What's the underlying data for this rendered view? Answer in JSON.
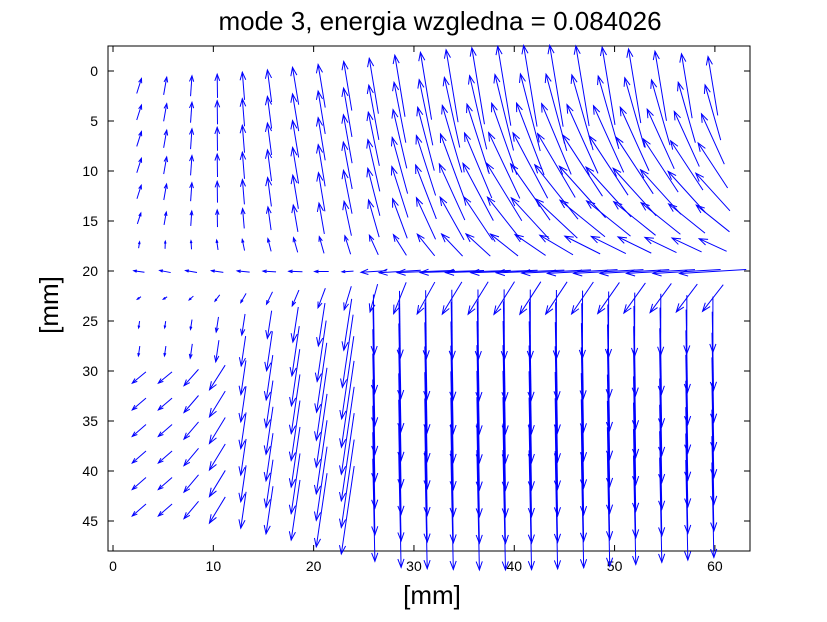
{
  "chart_data": {
    "type": "quiver",
    "title": "mode 3, energia wzgledna = 0.084026",
    "xlabel": "[mm]",
    "ylabel": "[mm]",
    "xlim": [
      -0.5,
      63.5
    ],
    "ylim": [
      48,
      -2.5
    ],
    "y_axis_reversed": true,
    "xticks": [
      0,
      10,
      20,
      30,
      40,
      50,
      60
    ],
    "yticks": [
      0,
      5,
      10,
      15,
      20,
      25,
      30,
      35,
      40,
      45
    ],
    "arrow_color": "#0000ff",
    "grid": {
      "x_start": 2.6,
      "x_step": 2.6,
      "x_count": 23,
      "y_start": 1.5,
      "y_step": 2.65,
      "y_count": 17
    },
    "field_description": "Upper-right region: vectors point up-left, strongest near x=30-45 mm, y=0-10 mm. Horizontal band near y=20 mm: vectors point left. Lower region (y>25 mm): vectors point down, strongest near x=28-45 mm. Left edge (x<10 mm): small vectors, up-right at top, left-ish near bottom."
  },
  "colors": {
    "axes": "#000000",
    "background": "#ffffff",
    "arrows": "#0000ff"
  }
}
